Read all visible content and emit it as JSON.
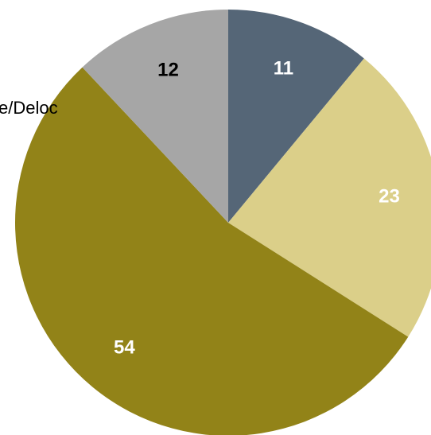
{
  "chart_data": {
    "type": "pie",
    "title": "",
    "slices": [
      {
        "value": 11,
        "label": "11",
        "color": "#556677",
        "label_color": "#ffffff"
      },
      {
        "value": 23,
        "label": "23",
        "color": "#dbcf89",
        "label_color": "#ffffff"
      },
      {
        "value": 54,
        "label": "54",
        "color": "#928318",
        "label_color": "#ffffff"
      },
      {
        "value": 12,
        "label": "12",
        "color": "#a6a6a6",
        "label_color": "#000000"
      }
    ],
    "start_angle": "12 o'clock",
    "direction": "clockwise",
    "category_labels": [
      "e/Deloc"
    ]
  }
}
